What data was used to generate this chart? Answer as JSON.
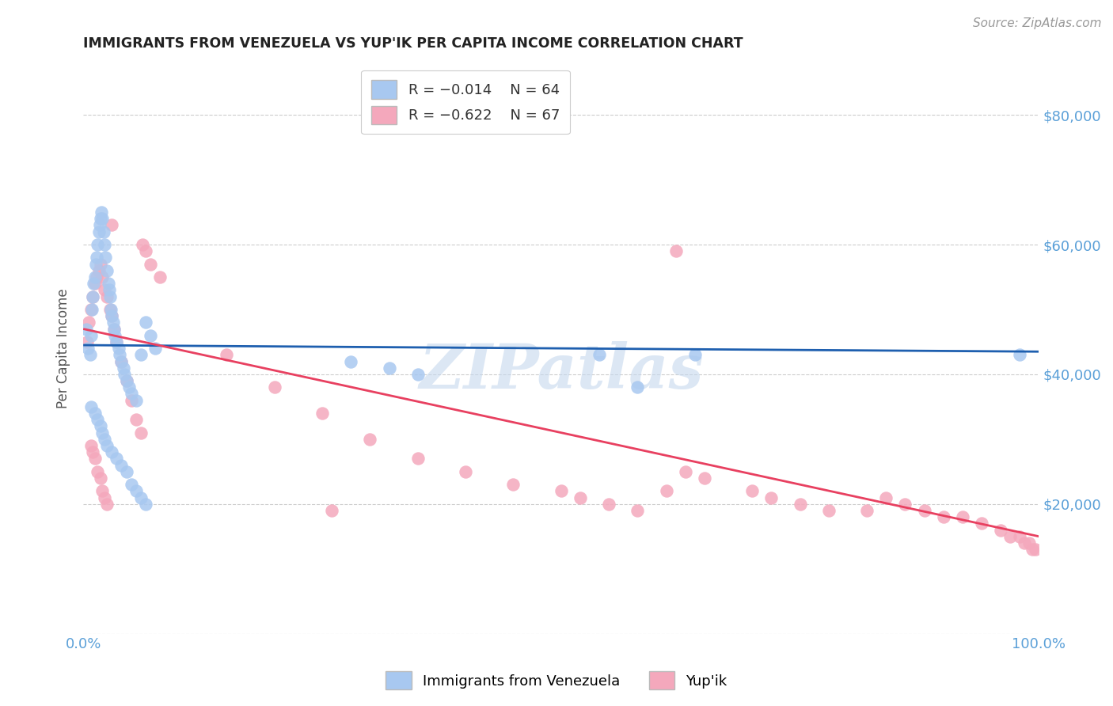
{
  "title": "IMMIGRANTS FROM VENEZUELA VS YUP'IK PER CAPITA INCOME CORRELATION CHART",
  "source": "Source: ZipAtlas.com",
  "ylabel": "Per Capita Income",
  "yticks": [
    0,
    20000,
    40000,
    60000,
    80000
  ],
  "ytick_labels": [
    "",
    "$20,000",
    "$40,000",
    "$60,000",
    "$80,000"
  ],
  "xlim": [
    0.0,
    1.0
  ],
  "ylim": [
    0,
    88000
  ],
  "legend_r1": "R = -0.014",
  "legend_n1": "N = 64",
  "legend_r2": "R = -0.622",
  "legend_n2": "N = 67",
  "color_blue": "#A8C8F0",
  "color_pink": "#F4A8BC",
  "color_blue_line": "#1E5FAF",
  "color_pink_line": "#E84060",
  "color_axis_label": "#5BA0D8",
  "watermark_color": "#C5D8EE",
  "background_color": "#FFFFFF",
  "grid_color": "#CCCCCC",
  "blue_x": [
    0.003,
    0.005,
    0.007,
    0.008,
    0.009,
    0.01,
    0.011,
    0.012,
    0.013,
    0.014,
    0.015,
    0.016,
    0.017,
    0.018,
    0.019,
    0.02,
    0.021,
    0.022,
    0.023,
    0.025,
    0.026,
    0.027,
    0.028,
    0.029,
    0.03,
    0.031,
    0.032,
    0.033,
    0.035,
    0.037,
    0.038,
    0.04,
    0.042,
    0.043,
    0.045,
    0.048,
    0.05,
    0.055,
    0.06,
    0.065,
    0.07,
    0.075,
    0.008,
    0.012,
    0.015,
    0.018,
    0.02,
    0.022,
    0.025,
    0.03,
    0.035,
    0.04,
    0.045,
    0.05,
    0.055,
    0.06,
    0.065,
    0.28,
    0.32,
    0.35,
    0.54,
    0.58,
    0.64,
    0.98
  ],
  "blue_y": [
    47000,
    44000,
    43000,
    46000,
    50000,
    52000,
    54000,
    55000,
    57000,
    58000,
    60000,
    62000,
    63000,
    64000,
    65000,
    64000,
    62000,
    60000,
    58000,
    56000,
    54000,
    53000,
    52000,
    50000,
    49000,
    48000,
    47000,
    46000,
    45000,
    44000,
    43000,
    42000,
    41000,
    40000,
    39000,
    38000,
    37000,
    36000,
    43000,
    48000,
    46000,
    44000,
    35000,
    34000,
    33000,
    32000,
    31000,
    30000,
    29000,
    28000,
    27000,
    26000,
    25000,
    23000,
    22000,
    21000,
    20000,
    42000,
    41000,
    40000,
    43000,
    38000,
    43000,
    43000
  ],
  "pink_x": [
    0.004,
    0.006,
    0.008,
    0.01,
    0.012,
    0.014,
    0.016,
    0.018,
    0.02,
    0.022,
    0.025,
    0.028,
    0.03,
    0.032,
    0.035,
    0.04,
    0.045,
    0.05,
    0.055,
    0.06,
    0.008,
    0.01,
    0.012,
    0.015,
    0.018,
    0.02,
    0.022,
    0.025,
    0.062,
    0.065,
    0.07,
    0.08,
    0.15,
    0.2,
    0.25,
    0.3,
    0.35,
    0.4,
    0.45,
    0.5,
    0.52,
    0.55,
    0.58,
    0.61,
    0.63,
    0.65,
    0.7,
    0.72,
    0.75,
    0.78,
    0.82,
    0.84,
    0.86,
    0.88,
    0.9,
    0.92,
    0.94,
    0.96,
    0.97,
    0.98,
    0.985,
    0.99,
    0.993,
    0.996,
    0.03,
    0.26,
    0.62
  ],
  "pink_y": [
    45000,
    48000,
    50000,
    52000,
    54000,
    55000,
    56000,
    57000,
    55000,
    53000,
    52000,
    50000,
    49000,
    47000,
    45000,
    42000,
    39000,
    36000,
    33000,
    31000,
    29000,
    28000,
    27000,
    25000,
    24000,
    22000,
    21000,
    20000,
    60000,
    59000,
    57000,
    55000,
    43000,
    38000,
    34000,
    30000,
    27000,
    25000,
    23000,
    22000,
    21000,
    20000,
    19000,
    22000,
    25000,
    24000,
    22000,
    21000,
    20000,
    19000,
    19000,
    21000,
    20000,
    19000,
    18000,
    18000,
    17000,
    16000,
    15000,
    15000,
    14000,
    14000,
    13000,
    13000,
    63000,
    19000,
    59000
  ]
}
